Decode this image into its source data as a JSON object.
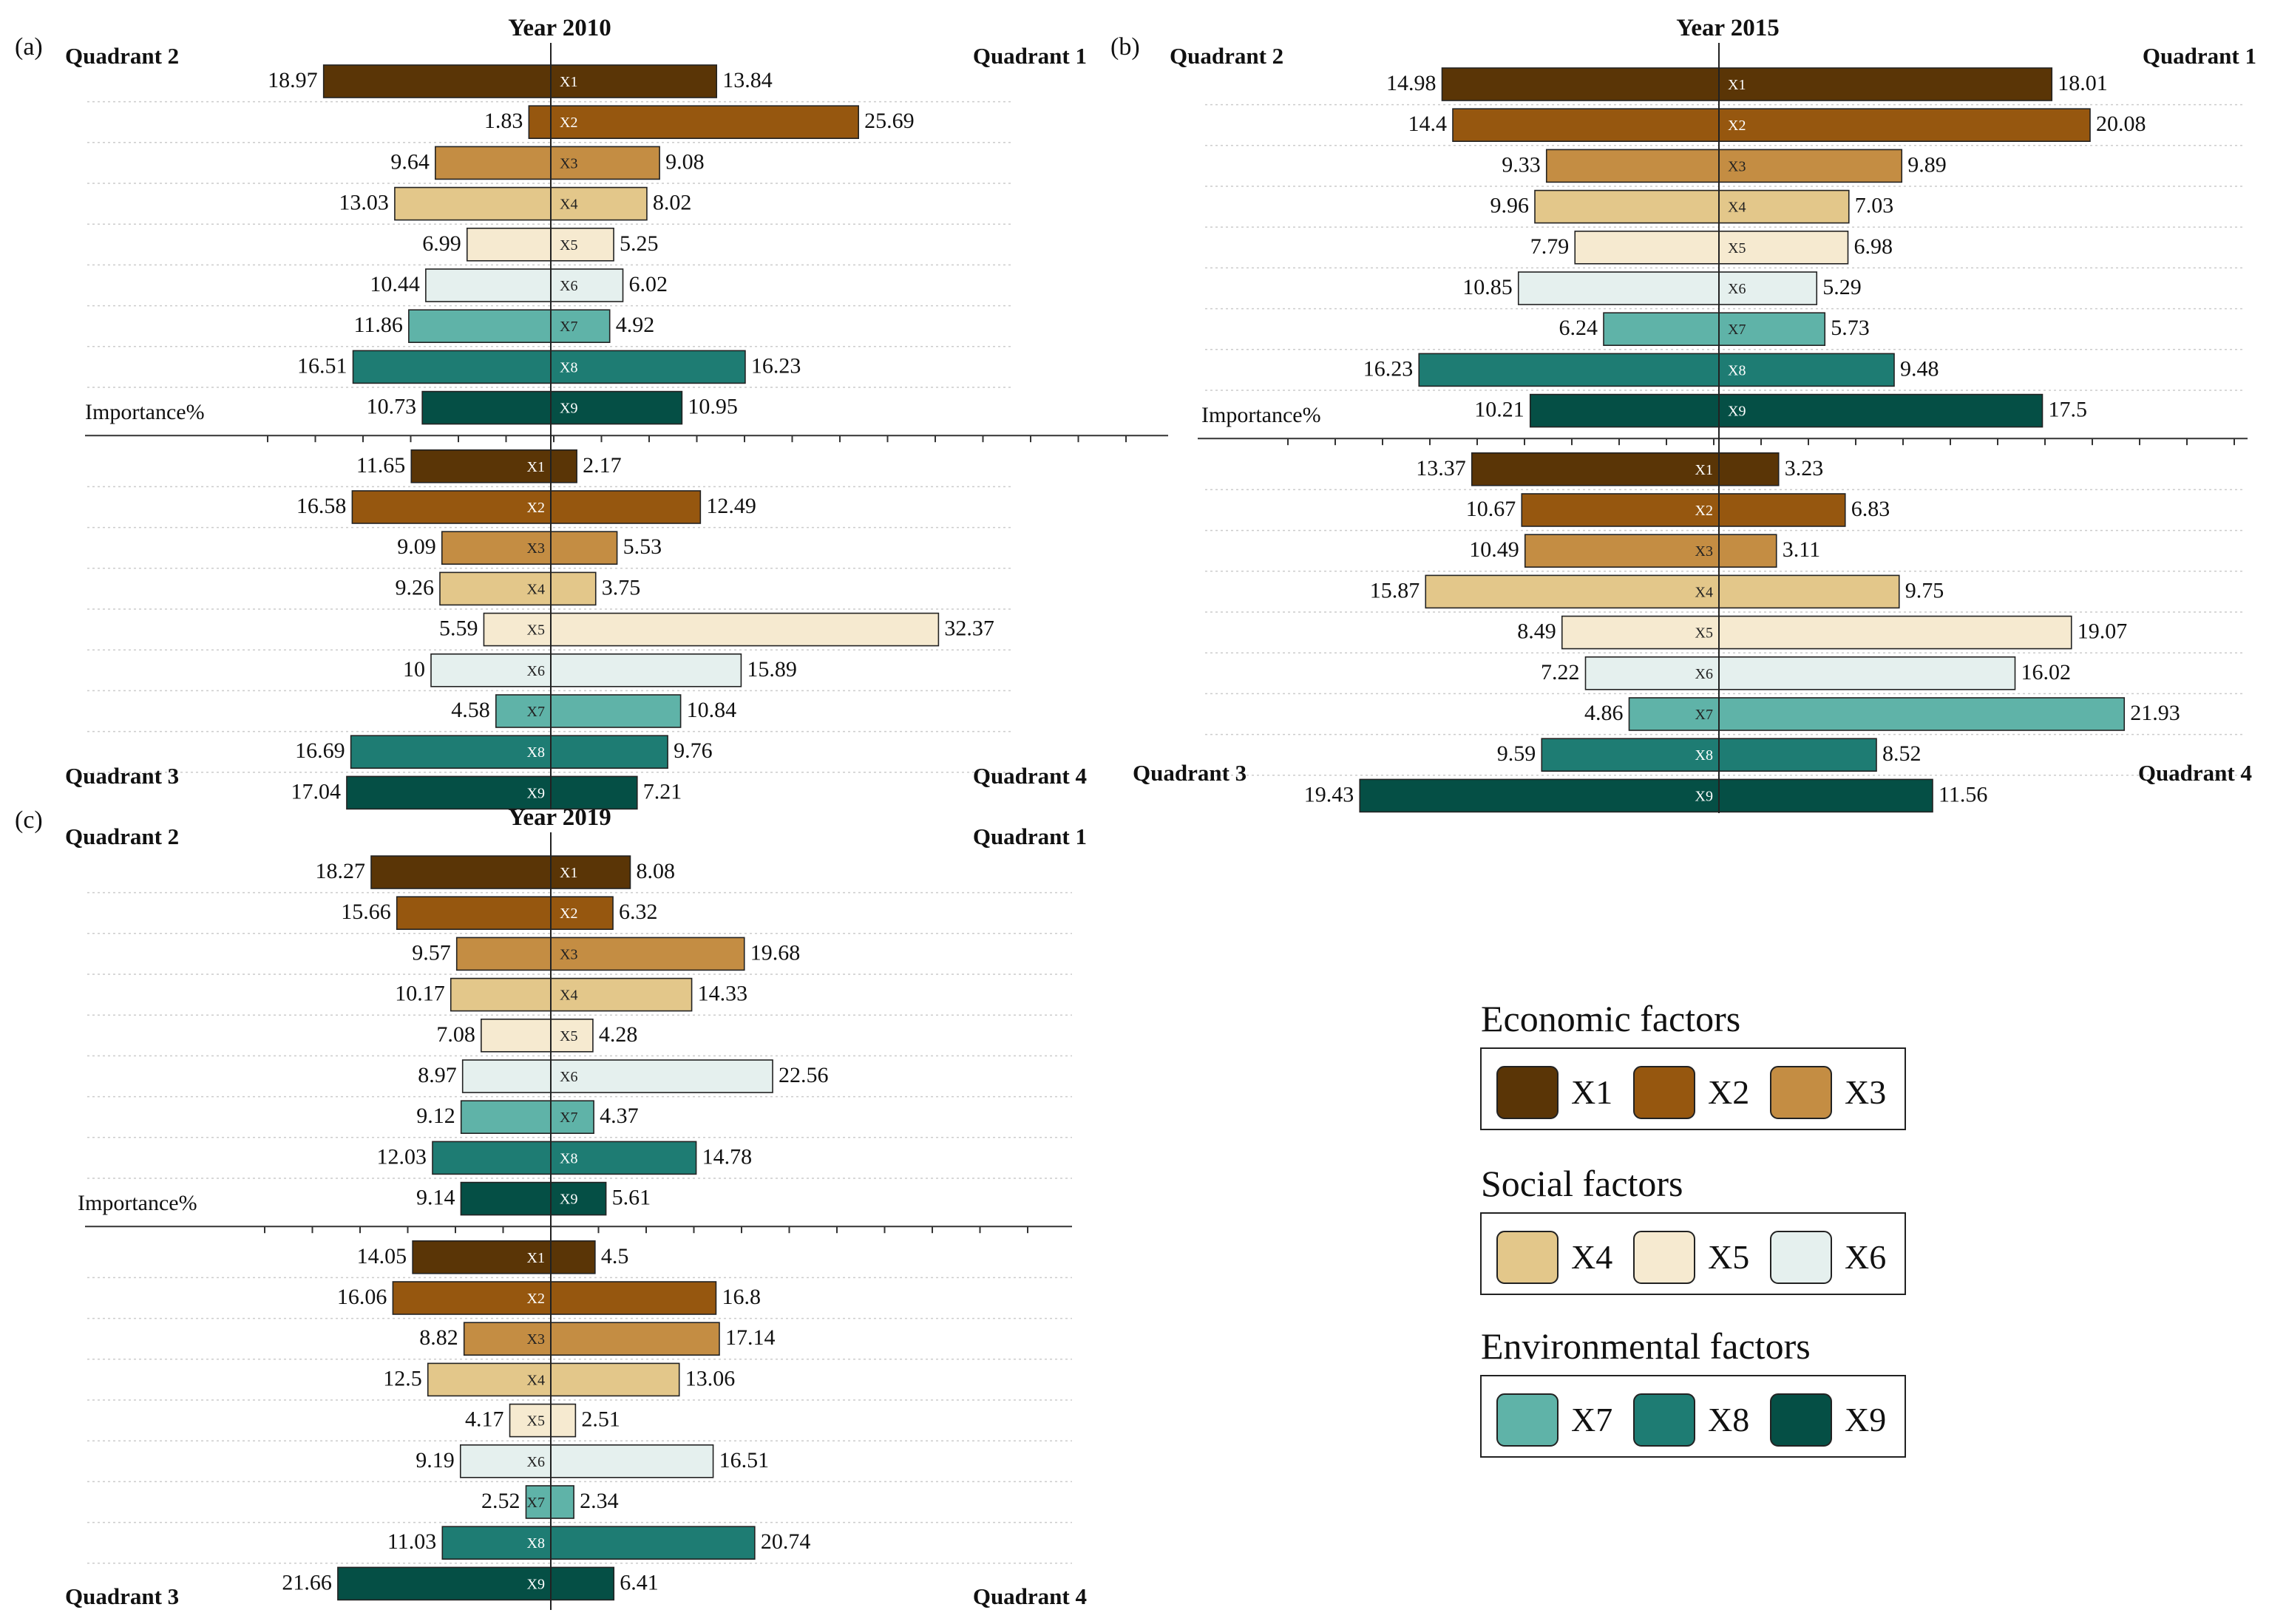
{
  "factors": [
    "X1",
    "X2",
    "X3",
    "X4",
    "X5",
    "X6",
    "X7",
    "X8",
    "X9"
  ],
  "colors": {
    "X1": "#5a3506",
    "X2": "#96570f",
    "X3": "#c48d43",
    "X4": "#e3c78a",
    "X5": "#f6ead0",
    "X6": "#e5f0ee",
    "X7": "#5fb3a8",
    "X8": "#1e7c73",
    "X9": "#054f45",
    "stroke": "#222222"
  },
  "quadrant_labels": {
    "q1": "Quadrant 1",
    "q2": "Quadrant 2",
    "q3": "Quadrant 3",
    "q4": "Quadrant 4"
  },
  "importance_label": "Importance%",
  "chart_data": [
    {
      "type": "bar",
      "panel": "(a)",
      "title": "Year 2010",
      "categories": [
        "X1",
        "X2",
        "X3",
        "X4",
        "X5",
        "X6",
        "X7",
        "X8",
        "X9"
      ],
      "upper": {
        "left": [
          18.97,
          1.83,
          9.64,
          13.03,
          6.99,
          10.44,
          11.86,
          16.51,
          10.73
        ],
        "right": [
          13.84,
          25.69,
          9.08,
          8.02,
          5.25,
          6.02,
          4.92,
          16.23,
          10.95
        ]
      },
      "lower": {
        "left": [
          11.65,
          16.58,
          9.09,
          9.26,
          5.59,
          10,
          4.58,
          16.69,
          17.04
        ],
        "right": [
          2.17,
          12.49,
          5.53,
          3.75,
          32.37,
          15.89,
          10.84,
          9.76,
          7.21
        ]
      },
      "labels": {
        "upper_left": [
          "18.97",
          "1.83",
          "9.64",
          "13.03",
          "6.99",
          "10.44",
          "11.86",
          "16.51",
          "10.73"
        ],
        "upper_right": [
          "13.84",
          "25.69",
          "9.08",
          "8.02",
          "5.25",
          "6.02",
          "4.92",
          "16.23",
          "10.95"
        ],
        "lower_left": [
          "11.65",
          "16.58",
          "9.09",
          "9.26",
          "5.59",
          "10",
          "4.58",
          "16.69",
          "17.04"
        ],
        "lower_right": [
          "2.17",
          "12.49",
          "5.53",
          "3.75",
          "32.37",
          "15.89",
          "10.84",
          "9.76",
          "7.21"
        ]
      }
    },
    {
      "type": "bar",
      "panel": "(b)",
      "title": "Year 2015",
      "categories": [
        "X1",
        "X2",
        "X3",
        "X4",
        "X5",
        "X6",
        "X7",
        "X8",
        "X9"
      ],
      "upper": {
        "left": [
          14.98,
          14.4,
          9.33,
          9.96,
          7.79,
          10.85,
          6.24,
          16.23,
          10.21
        ],
        "right": [
          18.01,
          20.08,
          9.89,
          7.03,
          6.98,
          5.29,
          5.73,
          9.48,
          17.5
        ]
      },
      "lower": {
        "left": [
          13.37,
          10.67,
          10.49,
          15.87,
          8.49,
          7.22,
          4.86,
          9.59,
          19.43
        ],
        "right": [
          3.23,
          6.83,
          3.11,
          9.75,
          19.07,
          16.02,
          21.93,
          8.52,
          11.56
        ]
      },
      "labels": {
        "upper_left": [
          "14.98",
          "14.4",
          "9.33",
          "9.96",
          "7.79",
          "10.85",
          "6.24",
          "16.23",
          "10.21"
        ],
        "upper_right": [
          "18.01",
          "20.08",
          "9.89",
          "7.03",
          "6.98",
          "5.29",
          "5.73",
          "9.48",
          "17.5"
        ],
        "lower_left": [
          "13.37",
          "10.67",
          "10.49",
          "15.87",
          "8.49",
          "7.22",
          "4.86",
          "9.59",
          "19.43"
        ],
        "lower_right": [
          "3.23",
          "6.83",
          "3.11",
          "9.75",
          "19.07",
          "16.02",
          "21.93",
          "8.52",
          "11.56"
        ]
      }
    },
    {
      "type": "bar",
      "panel": "(c)",
      "title": "Year 2019",
      "categories": [
        "X1",
        "X2",
        "X3",
        "X4",
        "X5",
        "X6",
        "X7",
        "X8",
        "X9"
      ],
      "upper": {
        "left": [
          18.27,
          15.66,
          9.57,
          10.17,
          7.08,
          8.97,
          9.12,
          12.03,
          9.14
        ],
        "right": [
          8.08,
          6.32,
          19.68,
          14.33,
          4.28,
          22.56,
          4.37,
          14.78,
          5.61
        ]
      },
      "lower": {
        "left": [
          14.05,
          16.06,
          8.82,
          12.5,
          4.17,
          9.19,
          2.52,
          11.03,
          21.66
        ],
        "right": [
          4.5,
          16.8,
          17.14,
          13.06,
          2.51,
          16.51,
          2.34,
          20.74,
          6.41
        ]
      },
      "labels": {
        "upper_left": [
          "18.27",
          "15.66",
          "9.57",
          "10.17",
          "7.08",
          "8.97",
          "9.12",
          "12.03",
          "9.14"
        ],
        "upper_right": [
          "8.08",
          "6.32",
          "19.68",
          "14.33",
          "4.28",
          "22.56",
          "4.37",
          "14.78",
          "5.61"
        ],
        "lower_left": [
          "14.05",
          "16.06",
          "8.82",
          "12.5",
          "4.17",
          "9.19",
          "2.52",
          "11.03",
          "21.66"
        ],
        "lower_right": [
          "4.5",
          "16.8",
          "17.14",
          "13.06",
          "2.51",
          "16.51",
          "2.34",
          "20.74",
          "6.41"
        ]
      }
    }
  ],
  "legend": {
    "groups": [
      {
        "title": "Economic factors",
        "items": [
          "X1",
          "X2",
          "X3"
        ]
      },
      {
        "title": "Social factors",
        "items": [
          "X4",
          "X5",
          "X6"
        ]
      },
      {
        "title": "Environmental factors",
        "items": [
          "X7",
          "X8",
          "X9"
        ]
      }
    ]
  }
}
